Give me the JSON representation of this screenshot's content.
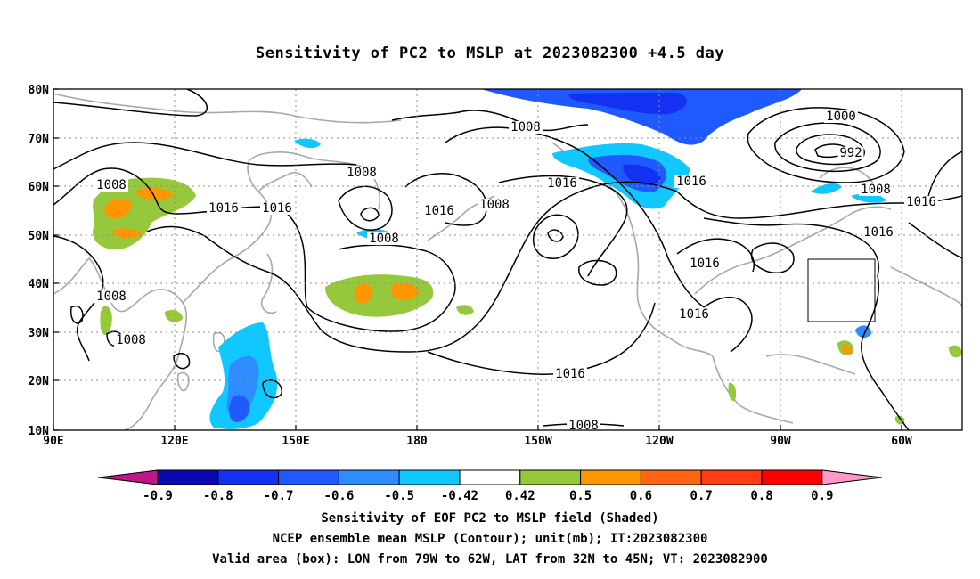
{
  "title": "Sensitivity of PC2 to MSLP at 2023082300 +4.5 day",
  "lat_labels": [
    "80N",
    "70N",
    "60N",
    "50N",
    "40N",
    "30N",
    "20N",
    "10N"
  ],
  "lon_labels": [
    "90E",
    "120E",
    "150E",
    "180",
    "150W",
    "120W",
    "90W",
    "60W"
  ],
  "colorbar": {
    "labels": [
      "-0.9",
      "-0.8",
      "-0.7",
      "-0.6",
      "-0.5",
      "-0.42",
      "0.42",
      "0.5",
      "0.6",
      "0.7",
      "0.8",
      "0.9"
    ],
    "colors": [
      "#c0168a",
      "#0a08b0",
      "#1430f0",
      "#1e5aff",
      "#2e8cff",
      "#10c8ff",
      "#ffffff",
      "#96c83c",
      "#ff9600",
      "#ff6414",
      "#ff3c14",
      "#ff0000",
      "#ff99cc"
    ]
  },
  "contour_labels": [
    "1008",
    "1008",
    "1016",
    "1016",
    "1008",
    "1008",
    "1016",
    "1008",
    "1016",
    "1016",
    "1016",
    "1016",
    "1000",
    "992",
    "1008",
    "1016",
    "1016",
    "1008",
    "1008",
    "1016",
    "1008"
  ],
  "captions": [
    "Sensitivity of EOF PC2 to MSLP field (Shaded)",
    "NCEP ensemble mean MSLP (Contour); unit(mb); IT:2023082300",
    "Valid area (box): LON from 79W to 62W, LAT from 32N to 45N; VT: 2023082900"
  ]
}
